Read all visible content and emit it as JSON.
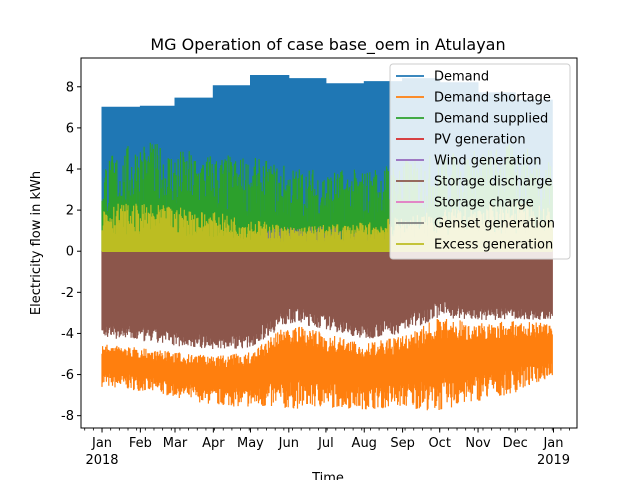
{
  "chart_data": {
    "type": "area",
    "title": "MG Operation of case base_oem in Atulayan",
    "xlabel": "Time",
    "ylabel": "Electricity flow in kWh",
    "xlim": [
      "2017-12-15",
      "2019-01-20"
    ],
    "ylim": [
      -8.6,
      9.4
    ],
    "y_ticks": [
      -8,
      -6,
      -4,
      -2,
      0,
      2,
      4,
      6,
      8
    ],
    "x_ticks": [
      {
        "date": "2018-01-01",
        "label": "Jan",
        "year": "2018"
      },
      {
        "date": "2018-02-01",
        "label": "Feb",
        "year": ""
      },
      {
        "date": "2018-03-01",
        "label": "Mar",
        "year": ""
      },
      {
        "date": "2018-04-01",
        "label": "Apr",
        "year": ""
      },
      {
        "date": "2018-05-01",
        "label": "May",
        "year": ""
      },
      {
        "date": "2018-06-01",
        "label": "Jun",
        "year": ""
      },
      {
        "date": "2018-07-01",
        "label": "Jul",
        "year": ""
      },
      {
        "date": "2018-08-01",
        "label": "Aug",
        "year": ""
      },
      {
        "date": "2018-09-01",
        "label": "Sep",
        "year": ""
      },
      {
        "date": "2018-10-01",
        "label": "Oct",
        "year": ""
      },
      {
        "date": "2018-11-01",
        "label": "Nov",
        "year": ""
      },
      {
        "date": "2018-12-01",
        "label": "Dec",
        "year": ""
      },
      {
        "date": "2019-01-01",
        "label": "Jan",
        "year": "2019"
      }
    ],
    "grid": false,
    "legend_position": "top-right",
    "series": [
      {
        "name": "Demand",
        "color": "#1f77b4",
        "kind": "monthly_step",
        "months": [
          "2018-01",
          "2018-02",
          "2018-03",
          "2018-04",
          "2018-05",
          "2018-06",
          "2018-07",
          "2018-08",
          "2018-09",
          "2018-10",
          "2018-11",
          "2018-12"
        ],
        "values": [
          7.0,
          7.05,
          7.45,
          8.05,
          8.55,
          8.4,
          8.15,
          8.25,
          8.4,
          8.2,
          7.7,
          7.35
        ]
      },
      {
        "name": "Demand shortage",
        "color": "#ff7f0e",
        "kind": "band_negative",
        "envelope": {
          "dates": [
            "2018-01-01",
            "2018-02-01",
            "2018-03-01",
            "2018-04-01",
            "2018-05-01",
            "2018-06-01",
            "2018-07-01",
            "2018-08-01",
            "2018-09-01",
            "2018-10-01",
            "2018-11-01",
            "2018-12-01",
            "2018-12-31"
          ],
          "min": [
            -6.6,
            -6.8,
            -7.1,
            -7.5,
            -7.6,
            -7.7,
            -7.6,
            -7.7,
            -7.6,
            -7.8,
            -7.3,
            -6.9,
            -6.1
          ],
          "max": [
            -4.5,
            -4.7,
            -4.9,
            -5.1,
            -4.9,
            -3.5,
            -4.0,
            -4.5,
            -4.1,
            -3.2,
            -3.5,
            -3.4,
            -3.5
          ]
        }
      },
      {
        "name": "Demand supplied",
        "color": "#2ca02c",
        "kind": "band_positive",
        "envelope": {
          "dates": [
            "2018-01-01",
            "2018-02-01",
            "2018-03-01",
            "2018-04-01",
            "2018-05-01",
            "2018-06-01",
            "2018-07-01",
            "2018-08-01",
            "2018-09-01",
            "2018-10-01",
            "2018-11-01",
            "2018-12-01",
            "2018-12-31"
          ],
          "max": [
            4.5,
            5.5,
            5.0,
            4.8,
            4.6,
            4.2,
            4.0,
            4.0,
            4.5,
            4.8,
            5.0,
            5.3,
            4.5
          ]
        }
      },
      {
        "name": "PV generation",
        "color": "#d62728",
        "kind": "legend_only"
      },
      {
        "name": "Wind generation",
        "color": "#9467bd",
        "kind": "legend_only"
      },
      {
        "name": "Storage discharge",
        "color": "#8c564b",
        "kind": "band_negative",
        "envelope": {
          "dates": [
            "2018-01-01",
            "2018-02-01",
            "2018-03-01",
            "2018-04-01",
            "2018-05-01",
            "2018-06-01",
            "2018-07-01",
            "2018-08-01",
            "2018-09-01",
            "2018-10-01",
            "2018-11-01",
            "2018-12-01",
            "2018-12-31"
          ],
          "min": [
            -4.2,
            -4.4,
            -4.6,
            -4.8,
            -4.7,
            -3.5,
            -3.8,
            -4.3,
            -4.0,
            -3.2,
            -3.4,
            -3.3,
            -3.4
          ],
          "max": [
            -2.2,
            -2.4,
            -2.6,
            -2.8,
            -2.7,
            -1.0,
            -1.8,
            -2.4,
            -1.5,
            -1.0,
            -1.6,
            -1.8,
            -2.0
          ]
        }
      },
      {
        "name": "Storage charge",
        "color": "#e377c2",
        "kind": "legend_only"
      },
      {
        "name": "Genset generation",
        "color": "#7f7f7f",
        "kind": "band_positive",
        "envelope": {
          "dates": [
            "2018-05-15",
            "2018-06-01",
            "2018-07-01",
            "2018-08-01",
            "2018-09-01"
          ],
          "max": [
            1.0,
            1.3,
            1.2,
            1.0,
            0.7
          ]
        }
      },
      {
        "name": "Excess generation",
        "color": "#bcbd22",
        "kind": "band_positive",
        "envelope": {
          "dates": [
            "2018-01-01",
            "2018-02-01",
            "2018-03-01",
            "2018-04-01",
            "2018-05-01",
            "2018-06-01",
            "2018-07-01",
            "2018-08-01",
            "2018-09-01",
            "2018-10-01",
            "2018-11-01",
            "2018-12-01",
            "2018-12-31"
          ],
          "max": [
            2.4,
            2.3,
            2.2,
            1.9,
            1.6,
            1.2,
            1.3,
            1.4,
            1.7,
            2.0,
            2.2,
            2.4,
            2.2
          ]
        }
      }
    ]
  }
}
